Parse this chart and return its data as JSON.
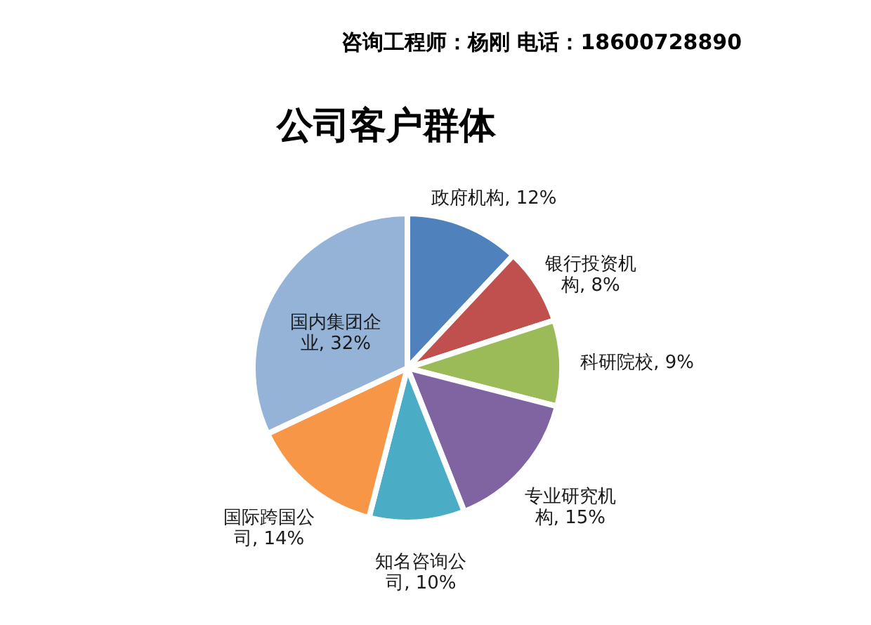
{
  "chart_data": {
    "type": "pie",
    "title": "公司客户群体",
    "categories": [
      "政府机构",
      "银行投资机构",
      "科研院校",
      "专业研究机构",
      "知名咨询公司",
      "国际跨国公司",
      "国内集团企业"
    ],
    "values": [
      12,
      8,
      9,
      15,
      10,
      14,
      32
    ],
    "colors": [
      "#4f81bd",
      "#c0504d",
      "#9bbb59",
      "#8064a2",
      "#4bacc6",
      "#f79646",
      "#95b3d7"
    ],
    "value_labels": [
      "12%",
      "8%",
      "9%",
      "15%",
      "10%",
      "14%",
      "32%"
    ],
    "annotations": [
      "咨询工程师：杨刚 电话：18600728890"
    ]
  }
}
